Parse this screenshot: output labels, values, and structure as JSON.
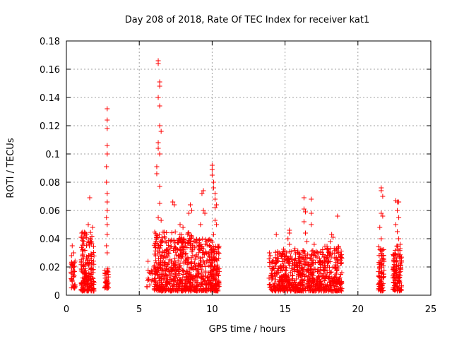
{
  "chart_data": {
    "type": "scatter",
    "title": "Day 208 of 2018, Rate Of TEC Index for receiver kat1",
    "xlabel": "GPS time / hours",
    "ylabel": "ROTI / TECUs",
    "xlim": [
      0,
      25
    ],
    "ylim": [
      0,
      0.18
    ],
    "xticks": [
      0,
      5,
      10,
      15,
      20,
      25
    ],
    "yticks": [
      0,
      0.02,
      0.04,
      0.06,
      0.08,
      0.1,
      0.12,
      0.14,
      0.16,
      0.18
    ],
    "xtick_labels": [
      "0",
      "5",
      "10",
      "15",
      "20",
      "25"
    ],
    "ytick_labels": [
      "0",
      "0.02",
      "0.04",
      "0.06",
      "0.08",
      "0.1",
      "0.12",
      "0.14",
      "0.16",
      "0.18"
    ],
    "grid": true,
    "marker": "+",
    "color": "#ff0000",
    "series": [
      {
        "name": "ROTI",
        "clusters": [
          {
            "x": [
              0.3,
              0.6
            ],
            "y": [
              0.005,
              0.025
            ],
            "n": 40,
            "peaks": [
              [
                0.4,
                0.035
              ],
              [
                0.5,
                0.03
              ],
              [
                0.35,
                0.028
              ]
            ]
          },
          {
            "x": [
              1.0,
              1.9
            ],
            "y": [
              0.003,
              0.045
            ],
            "n": 200,
            "peaks": [
              [
                1.6,
                0.069
              ],
              [
                1.5,
                0.05
              ],
              [
                1.8,
                0.048
              ],
              [
                1.3,
                0.044
              ]
            ]
          },
          {
            "x": [
              2.6,
              2.9
            ],
            "y": [
              0.005,
              0.02
            ],
            "n": 40,
            "peaks": [
              [
                2.8,
                0.132
              ],
              [
                2.8,
                0.124
              ],
              [
                2.8,
                0.118
              ],
              [
                2.8,
                0.106
              ],
              [
                2.8,
                0.1
              ],
              [
                2.75,
                0.091
              ],
              [
                2.75,
                0.08
              ],
              [
                2.8,
                0.072
              ],
              [
                2.8,
                0.066
              ],
              [
                2.8,
                0.06
              ],
              [
                2.75,
                0.055
              ],
              [
                2.8,
                0.05
              ],
              [
                2.8,
                0.043
              ],
              [
                2.75,
                0.035
              ],
              [
                2.8,
                0.03
              ]
            ]
          },
          {
            "x": [
              5.5,
              5.9
            ],
            "y": [
              0.005,
              0.02
            ],
            "n": 15,
            "peaks": [
              [
                5.6,
                0.024
              ]
            ]
          },
          {
            "x": [
              6.0,
              7.0
            ],
            "y": [
              0.003,
              0.045
            ],
            "n": 200,
            "peaks": [
              [
                6.3,
                0.166
              ],
              [
                6.3,
                0.164
              ],
              [
                6.4,
                0.151
              ],
              [
                6.4,
                0.148
              ],
              [
                6.3,
                0.14
              ],
              [
                6.4,
                0.134
              ],
              [
                6.4,
                0.12
              ],
              [
                6.5,
                0.116
              ],
              [
                6.3,
                0.108
              ],
              [
                6.3,
                0.104
              ],
              [
                6.4,
                0.1
              ],
              [
                6.2,
                0.091
              ],
              [
                6.2,
                0.086
              ],
              [
                6.4,
                0.077
              ],
              [
                6.4,
                0.065
              ],
              [
                6.3,
                0.055
              ],
              [
                6.5,
                0.053
              ]
            ]
          },
          {
            "x": [
              7.0,
              8.6
            ],
            "y": [
              0.003,
              0.045
            ],
            "n": 300,
            "peaks": [
              [
                7.3,
                0.066
              ],
              [
                7.4,
                0.064
              ],
              [
                8.5,
                0.064
              ],
              [
                8.6,
                0.06
              ],
              [
                8.4,
                0.058
              ],
              [
                7.8,
                0.05
              ],
              [
                8.0,
                0.048
              ]
            ]
          },
          {
            "x": [
              8.6,
              10.0
            ],
            "y": [
              0.003,
              0.04
            ],
            "n": 220,
            "peaks": [
              [
                9.4,
                0.074
              ],
              [
                9.3,
                0.072
              ],
              [
                9.4,
                0.06
              ],
              [
                9.5,
                0.058
              ],
              [
                9.2,
                0.05
              ]
            ]
          },
          {
            "x": [
              9.9,
              10.5
            ],
            "y": [
              0.003,
              0.035
            ],
            "n": 120,
            "peaks": [
              [
                10.0,
                0.092
              ],
              [
                10.0,
                0.089
              ],
              [
                10.0,
                0.085
              ],
              [
                10.1,
                0.08
              ],
              [
                10.1,
                0.076
              ],
              [
                10.2,
                0.072
              ],
              [
                10.2,
                0.068
              ],
              [
                10.3,
                0.064
              ],
              [
                10.2,
                0.062
              ],
              [
                10.2,
                0.053
              ],
              [
                10.3,
                0.05
              ],
              [
                10.1,
                0.043
              ]
            ]
          },
          {
            "x": [
              13.9,
              15.9
            ],
            "y": [
              0.003,
              0.033
            ],
            "n": 300,
            "peaks": [
              [
                14.4,
                0.043
              ],
              [
                15.3,
                0.046
              ],
              [
                15.3,
                0.044
              ],
              [
                15.2,
                0.04
              ],
              [
                15.3,
                0.036
              ]
            ]
          },
          {
            "x": [
              15.9,
              17.5
            ],
            "y": [
              0.003,
              0.033
            ],
            "n": 260,
            "peaks": [
              [
                16.3,
                0.069
              ],
              [
                16.3,
                0.061
              ],
              [
                16.4,
                0.059
              ],
              [
                16.8,
                0.068
              ],
              [
                16.8,
                0.058
              ],
              [
                16.3,
                0.052
              ],
              [
                16.8,
                0.05
              ],
              [
                16.4,
                0.044
              ],
              [
                16.5,
                0.038
              ],
              [
                17.0,
                0.036
              ]
            ]
          },
          {
            "x": [
              17.5,
              18.9
            ],
            "y": [
              0.003,
              0.035
            ],
            "n": 220,
            "peaks": [
              [
                18.6,
                0.056
              ],
              [
                18.2,
                0.043
              ],
              [
                18.3,
                0.041
              ],
              [
                18.1,
                0.038
              ]
            ]
          },
          {
            "x": [
              21.4,
              21.8
            ],
            "y": [
              0.003,
              0.035
            ],
            "n": 80,
            "peaks": [
              [
                21.6,
                0.076
              ],
              [
                21.6,
                0.074
              ],
              [
                21.7,
                0.07
              ],
              [
                21.6,
                0.058
              ],
              [
                21.7,
                0.056
              ],
              [
                21.5,
                0.048
              ],
              [
                21.6,
                0.04
              ]
            ]
          },
          {
            "x": [
              22.4,
              23.0
            ],
            "y": [
              0.003,
              0.035
            ],
            "n": 120,
            "peaks": [
              [
                22.6,
                0.067
              ],
              [
                22.7,
                0.066
              ],
              [
                22.8,
                0.066
              ],
              [
                22.7,
                0.06
              ],
              [
                22.8,
                0.055
              ],
              [
                22.6,
                0.05
              ],
              [
                22.7,
                0.045
              ],
              [
                22.8,
                0.04
              ],
              [
                22.9,
                0.036
              ]
            ]
          }
        ]
      }
    ]
  }
}
